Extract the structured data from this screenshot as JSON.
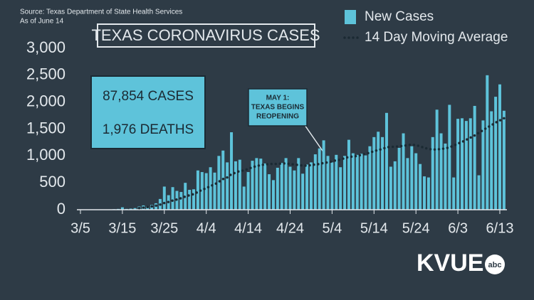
{
  "chart_data": {
    "type": "bar_line",
    "title": "TEXAS CORONAVIRUS CASES",
    "source": "Source: Texas Department of State Health Services",
    "as_of": "As of June 14",
    "summary": [
      "87,854 CASES",
      "1,976 DEATHS"
    ],
    "annotation": [
      "MAY 1:",
      "TEXAS BEGINS",
      "REOPENING"
    ],
    "logo": {
      "text": "KVUE",
      "badge": "abc"
    },
    "categories": [
      "3/5",
      null,
      null,
      null,
      null,
      null,
      null,
      null,
      null,
      null,
      "3/15",
      null,
      null,
      null,
      null,
      null,
      null,
      null,
      null,
      null,
      "3/25",
      null,
      null,
      null,
      null,
      null,
      null,
      null,
      null,
      null,
      "4/4",
      null,
      null,
      null,
      null,
      null,
      null,
      null,
      null,
      null,
      "4/14",
      null,
      null,
      null,
      null,
      null,
      null,
      null,
      null,
      null,
      "4/24",
      null,
      null,
      null,
      null,
      null,
      null,
      null,
      null,
      null,
      "5/4",
      null,
      null,
      null,
      null,
      null,
      null,
      null,
      null,
      null,
      "5/14",
      null,
      null,
      null,
      null,
      null,
      null,
      null,
      null,
      null,
      "5/24",
      null,
      null,
      null,
      null,
      null,
      null,
      null,
      null,
      null,
      "6/3",
      null,
      null,
      null,
      null,
      null,
      null,
      null,
      null,
      null,
      "6/13",
      null
    ],
    "series": [
      {
        "name": "New Cases",
        "kind": "bar",
        "color": "#5ec3da",
        "values": [
          0,
          1,
          0,
          0,
          2,
          5,
          5,
          7,
          10,
          15,
          45,
          15,
          20,
          30,
          60,
          80,
          60,
          90,
          120,
          200,
          430,
          270,
          420,
          350,
          330,
          500,
          370,
          380,
          730,
          700,
          680,
          790,
          690,
          1000,
          1100,
          880,
          1440,
          900,
          930,
          430,
          700,
          910,
          960,
          950,
          860,
          660,
          550,
          780,
          870,
          960,
          800,
          730,
          960,
          670,
          840,
          880,
          1030,
          1140,
          1290,
          1000,
          880,
          1020,
          790,
          1000,
          1300,
          1050,
          1020,
          1040,
          1010,
          1180,
          1350,
          1450,
          1350,
          1800,
          800,
          900,
          1150,
          1420,
          960,
          1180,
          1050,
          850,
          620,
          600,
          1350,
          1860,
          1420,
          1230,
          1950,
          600,
          1690,
          1700,
          1650,
          1700,
          1930,
          640,
          1660,
          2500,
          1830,
          2100,
          2330,
          1840
        ]
      },
      {
        "name": "14 Day Moving Average",
        "kind": "line",
        "color": "#1b2a33",
        "values": [
          null,
          null,
          null,
          null,
          null,
          null,
          null,
          null,
          null,
          null,
          null,
          null,
          null,
          null,
          30,
          40,
          50,
          60,
          75,
          95,
          125,
          145,
          170,
          190,
          215,
          245,
          270,
          290,
          330,
          370,
          400,
          440,
          470,
          520,
          570,
          600,
          660,
          690,
          720,
          730,
          760,
          790,
          810,
          830,
          840,
          850,
          850,
          850,
          860,
          860,
          850,
          840,
          830,
          820,
          820,
          830,
          840,
          850,
          870,
          880,
          900,
          920,
          930,
          960,
          980,
          990,
          1000,
          1020,
          1040,
          1060,
          1090,
          1110,
          1130,
          1160,
          1170,
          1170,
          1180,
          1190,
          1200,
          1210,
          1200,
          1180,
          1150,
          1130,
          1120,
          1120,
          1130,
          1140,
          1160,
          1190,
          1230,
          1260,
          1300,
          1340,
          1380,
          1430,
          1480,
          1530,
          1570,
          1620,
          1660,
          1700
        ]
      }
    ],
    "ylim": [
      0,
      3000
    ],
    "yticks": [
      0,
      500,
      {
        "value": 1000,
        "label": "1,000"
      },
      {
        "value": 1500,
        "label": "1,500"
      },
      {
        "value": 2000,
        "label": "2,000"
      },
      {
        "value": 2500,
        "label": "2,500"
      },
      {
        "value": 3000,
        "label": "3,000"
      }
    ]
  }
}
